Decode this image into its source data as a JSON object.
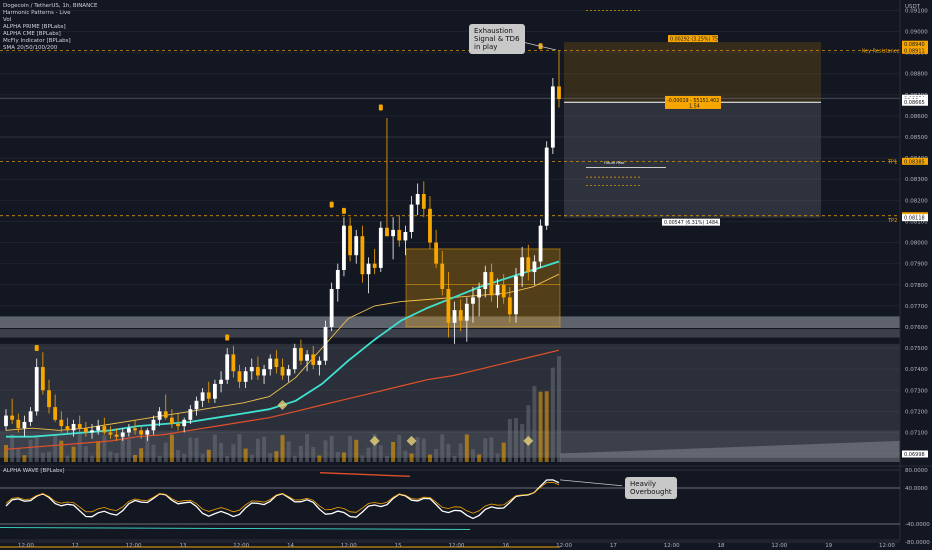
{
  "header": {
    "title": "Dogecoin / TetherUS, 1h, BINANCE",
    "indicators": [
      "Harmonic Patterns - Live",
      "Vol",
      "ALPHA PRIME [BPLabs]",
      "ALPHA CME [BPLabs]",
      "McFly Indicator [BPLabs]",
      "SMA 20/50/100/200"
    ]
  },
  "sub_legend": "ALPHA WAVE [BPLabs]",
  "callouts": {
    "exhaustion": "Exhaustion\nSignal & TD6\nin play",
    "overbought": "Heavily\nOverbought"
  },
  "levels": {
    "key_resistance": "Key Resistance",
    "tp1": "TP1",
    "tp2": "TP2",
    "trade_top_label": "0.00292 (3.25%) 757",
    "trade_entry_label": "-0.00019 - 55151.402",
    "trade_entry_sub": "1.54",
    "trade_bottom_label": "0.00547 (6.31%) 1484.93",
    "future_peak": "Future Peak"
  },
  "price_axis": {
    "currency": "USDT",
    "ticks": [
      "0.09100",
      "0.09000",
      "0.08900",
      "0.08800",
      "0.08700",
      "0.08600",
      "0.08500",
      "0.08400",
      "0.08300",
      "0.08200",
      "0.08100",
      "0.08000",
      "0.07900",
      "0.07800",
      "0.07700",
      "0.07600",
      "0.07500",
      "0.07400",
      "0.07300",
      "0.07200",
      "0.07100",
      "0.07000"
    ],
    "markers": [
      {
        "text": "0.08940",
        "v": 0.0894,
        "color": "#f7a600",
        "fg": "#131722"
      },
      {
        "text": "0.08911",
        "v": 0.08911,
        "color": "#f7a600",
        "fg": "#131722"
      },
      {
        "text": "0.08684",
        "v": 0.08684,
        "color": "#ffffff",
        "fg": "#131722"
      },
      {
        "text": "00:12",
        "v": 0.08675,
        "color": "#ffffff",
        "fg": "#131722"
      },
      {
        "text": "0.08665",
        "v": 0.08665,
        "color": "#ffffff",
        "fg": "#131722"
      },
      {
        "text": "0.08385",
        "v": 0.08385,
        "color": "#f7a600",
        "fg": "#131722"
      },
      {
        "text": "0.08127",
        "v": 0.08127,
        "color": "#f7a600",
        "fg": "#131722"
      },
      {
        "text": "0.08118",
        "v": 0.08118,
        "color": "#ffffff",
        "fg": "#131722"
      },
      {
        "text": "0.06998",
        "v": 0.06998,
        "color": "#ffffff",
        "fg": "#131722"
      }
    ]
  },
  "osc_axis": {
    "ticks": [
      "80.0000",
      "40.0000",
      "-40.0000",
      "-80.0000"
    ],
    "values": [
      80,
      40,
      -40,
      -80
    ]
  },
  "time_axis": {
    "labels": [
      "12:00",
      "12",
      "12:00",
      "13",
      "12:00",
      "14",
      "12:00",
      "15",
      "12:00",
      "16",
      "12:00",
      "17",
      "12:00",
      "18",
      "12:00",
      "19",
      "12:00"
    ]
  },
  "colors": {
    "bg": "#131722",
    "orange": "#f7a600",
    "teal": "#40e0d0",
    "red": "#e0502a",
    "yellow": "#f2c14e"
  },
  "chart_data": {
    "type": "candlestick",
    "title": "Dogecoin / TetherUS, 1h, BINANCE",
    "y_unit": "USDT",
    "ylim": [
      0.0696,
      0.0914
    ],
    "candles": [
      [
        0.0713,
        0.0721,
        0.0711,
        0.0718
      ],
      [
        0.0718,
        0.0726,
        0.0714,
        0.0716
      ],
      [
        0.0716,
        0.0719,
        0.071,
        0.0712
      ],
      [
        0.0712,
        0.0718,
        0.0708,
        0.0715
      ],
      [
        0.0715,
        0.0722,
        0.0713,
        0.072
      ],
      [
        0.072,
        0.0745,
        0.0718,
        0.0741
      ],
      [
        0.0741,
        0.0748,
        0.0728,
        0.073
      ],
      [
        0.073,
        0.0735,
        0.0719,
        0.0722
      ],
      [
        0.0722,
        0.0728,
        0.0715,
        0.0716
      ],
      [
        0.0716,
        0.072,
        0.071,
        0.0713
      ],
      [
        0.0713,
        0.0717,
        0.0709,
        0.0711
      ],
      [
        0.0711,
        0.0716,
        0.0708,
        0.0714
      ],
      [
        0.0714,
        0.0718,
        0.071,
        0.0712
      ],
      [
        0.0712,
        0.0715,
        0.0708,
        0.071
      ],
      [
        0.071,
        0.0714,
        0.0707,
        0.0711
      ],
      [
        0.0711,
        0.0716,
        0.0709,
        0.0713
      ],
      [
        0.0713,
        0.0717,
        0.0709,
        0.071
      ],
      [
        0.071,
        0.0713,
        0.0707,
        0.0709
      ],
      [
        0.0709,
        0.0712,
        0.0706,
        0.0708
      ],
      [
        0.0708,
        0.0712,
        0.0706,
        0.071
      ],
      [
        0.071,
        0.0714,
        0.0708,
        0.0712
      ],
      [
        0.0712,
        0.0716,
        0.0709,
        0.0711
      ],
      [
        0.0711,
        0.0713,
        0.0707,
        0.0709
      ],
      [
        0.0709,
        0.0712,
        0.0706,
        0.0711
      ],
      [
        0.0711,
        0.0718,
        0.0709,
        0.0716
      ],
      [
        0.0716,
        0.0722,
        0.0713,
        0.072
      ],
      [
        0.072,
        0.0728,
        0.0716,
        0.0717
      ],
      [
        0.0717,
        0.0721,
        0.0712,
        0.0714
      ],
      [
        0.0714,
        0.0719,
        0.0711,
        0.0713
      ],
      [
        0.0713,
        0.0717,
        0.071,
        0.0716
      ],
      [
        0.0716,
        0.0723,
        0.0714,
        0.0721
      ],
      [
        0.0721,
        0.0727,
        0.0718,
        0.0725
      ],
      [
        0.0725,
        0.0731,
        0.0722,
        0.0729
      ],
      [
        0.0729,
        0.0734,
        0.0724,
        0.0726
      ],
      [
        0.0726,
        0.0735,
        0.0724,
        0.0733
      ],
      [
        0.0733,
        0.0739,
        0.0729,
        0.0735
      ],
      [
        0.0735,
        0.075,
        0.0733,
        0.0747
      ],
      [
        0.0747,
        0.0751,
        0.0736,
        0.0739
      ],
      [
        0.0739,
        0.0742,
        0.0731,
        0.0734
      ],
      [
        0.0734,
        0.0741,
        0.0731,
        0.0739
      ],
      [
        0.0739,
        0.0745,
        0.0735,
        0.0741
      ],
      [
        0.0741,
        0.0746,
        0.0735,
        0.0737
      ],
      [
        0.0737,
        0.0742,
        0.0733,
        0.074
      ],
      [
        0.074,
        0.0747,
        0.0737,
        0.0745
      ],
      [
        0.0745,
        0.0749,
        0.0738,
        0.0741
      ],
      [
        0.0741,
        0.0745,
        0.0735,
        0.0737
      ],
      [
        0.0737,
        0.0742,
        0.0734,
        0.074
      ],
      [
        0.074,
        0.0752,
        0.0738,
        0.075
      ],
      [
        0.075,
        0.0754,
        0.0742,
        0.0744
      ],
      [
        0.0744,
        0.0749,
        0.0739,
        0.0747
      ],
      [
        0.0747,
        0.0751,
        0.074,
        0.0742
      ],
      [
        0.0742,
        0.0746,
        0.0737,
        0.0744
      ],
      [
        0.0744,
        0.0763,
        0.0742,
        0.076
      ],
      [
        0.076,
        0.0781,
        0.0758,
        0.0778
      ],
      [
        0.0778,
        0.079,
        0.0772,
        0.0787
      ],
      [
        0.0787,
        0.0812,
        0.0784,
        0.0808
      ],
      [
        0.0808,
        0.0812,
        0.0791,
        0.0794
      ],
      [
        0.0794,
        0.0806,
        0.079,
        0.0803
      ],
      [
        0.0803,
        0.0808,
        0.0781,
        0.0785
      ],
      [
        0.0785,
        0.0793,
        0.0776,
        0.079
      ],
      [
        0.079,
        0.0797,
        0.0785,
        0.0788
      ],
      [
        0.0788,
        0.081,
        0.0786,
        0.0807
      ],
      [
        0.0807,
        0.0859,
        0.0803,
        0.0803
      ],
      [
        0.0803,
        0.0812,
        0.0792,
        0.0806
      ],
      [
        0.0806,
        0.0813,
        0.0798,
        0.0801
      ],
      [
        0.0801,
        0.0808,
        0.0794,
        0.0805
      ],
      [
        0.0805,
        0.0822,
        0.0802,
        0.0818
      ],
      [
        0.0818,
        0.0828,
        0.0813,
        0.0823
      ],
      [
        0.0823,
        0.0829,
        0.0812,
        0.0816
      ],
      [
        0.0816,
        0.0822,
        0.0797,
        0.08
      ],
      [
        0.08,
        0.0806,
        0.0788,
        0.079
      ],
      [
        0.079,
        0.0796,
        0.0775,
        0.0778
      ],
      [
        0.0778,
        0.0786,
        0.0755,
        0.0762
      ],
      [
        0.0762,
        0.0772,
        0.0752,
        0.0768
      ],
      [
        0.0768,
        0.0773,
        0.0758,
        0.0763
      ],
      [
        0.0763,
        0.0774,
        0.0753,
        0.0771
      ],
      [
        0.0771,
        0.0779,
        0.0762,
        0.0774
      ],
      [
        0.0774,
        0.0781,
        0.0765,
        0.0778
      ],
      [
        0.0778,
        0.0789,
        0.0774,
        0.0786
      ],
      [
        0.0786,
        0.079,
        0.0772,
        0.0775
      ],
      [
        0.0775,
        0.0783,
        0.0769,
        0.078
      ],
      [
        0.078,
        0.0785,
        0.0771,
        0.0774
      ],
      [
        0.0774,
        0.0779,
        0.0762,
        0.0766
      ],
      [
        0.0766,
        0.0788,
        0.0762,
        0.0784
      ],
      [
        0.0784,
        0.0798,
        0.0779,
        0.0793
      ],
      [
        0.0793,
        0.0799,
        0.0782,
        0.0786
      ],
      [
        0.0786,
        0.0794,
        0.078,
        0.0791
      ],
      [
        0.0791,
        0.0811,
        0.0788,
        0.0808
      ],
      [
        0.0808,
        0.0848,
        0.0806,
        0.0845
      ],
      [
        0.0845,
        0.0878,
        0.0842,
        0.0874
      ],
      [
        0.0874,
        0.0891,
        0.0864,
        0.0868
      ]
    ],
    "sma_teal": [
      0.0708,
      0.0708,
      0.0709,
      0.071,
      0.0711,
      0.0713,
      0.0714,
      0.0715,
      0.0717,
      0.0719,
      0.0721,
      0.0725,
      0.0733,
      0.0744,
      0.0754,
      0.0763,
      0.0769,
      0.0774,
      0.0779,
      0.0783,
      0.0787,
      0.0791
    ],
    "sma_yellow": [
      0.0711,
      0.0712,
      0.0711,
      0.0712,
      0.0714,
      0.0716,
      0.0718,
      0.072,
      0.0722,
      0.0724,
      0.0727,
      0.0736,
      0.075,
      0.0764,
      0.077,
      0.0772,
      0.0773,
      0.0774,
      0.0775,
      0.0776,
      0.0779,
      0.0785
    ],
    "sma_red": [
      0.0702,
      0.0703,
      0.0704,
      0.0705,
      0.0706,
      0.0708,
      0.0709,
      0.0711,
      0.0713,
      0.0715,
      0.0717,
      0.072,
      0.0723,
      0.0726,
      0.0729,
      0.0732,
      0.0735,
      0.0737,
      0.074,
      0.0743,
      0.0746,
      0.0749
    ]
  }
}
